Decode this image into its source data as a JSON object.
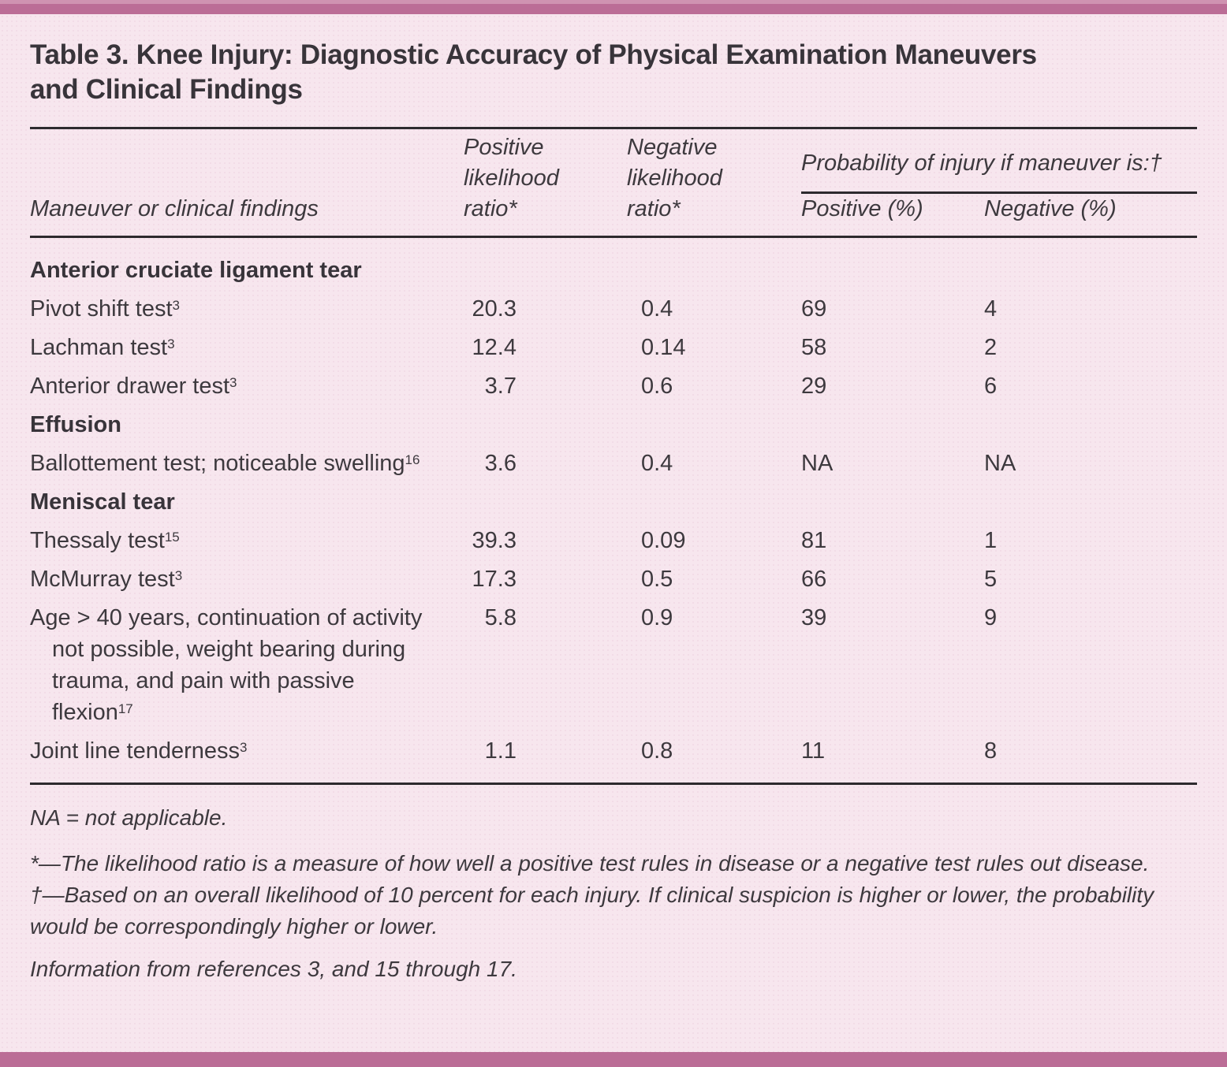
{
  "page": {
    "title_line1": "Table 3. Knee Injury: Diagnostic Accuracy of Physical Examination Maneuvers",
    "title_line2": "and Clinical Findings"
  },
  "colors": {
    "background": "#f7e6ee",
    "accent_bar": "#bb6d96",
    "accent_bar_light": "#cf93b1",
    "text": "#3d393e",
    "rule": "#2d2a2e"
  },
  "table": {
    "headers": {
      "maneuver": "Maneuver or clinical findings",
      "positive_lr": "Positive likelihood ratio*",
      "negative_lr": "Negative likelihood ratio*",
      "probability_group": "Probability of injury if maneuver is:†",
      "positive_pct": "Positive (%)",
      "negative_pct": "Negative (%)"
    },
    "rows": [
      {
        "type": "section",
        "label": "Anterior cruciate ligament tear"
      },
      {
        "type": "data",
        "label": "Pivot shift test",
        "sup": "3",
        "values": [
          "20.3",
          "0.4",
          "69",
          "4"
        ]
      },
      {
        "type": "data",
        "label": "Lachman test",
        "sup": "3",
        "values": [
          "12.4",
          "0.14",
          "58",
          "2"
        ]
      },
      {
        "type": "data",
        "label": "Anterior drawer test",
        "sup": "3",
        "values": [
          "3.7",
          "0.6",
          "29",
          "6"
        ]
      },
      {
        "type": "section",
        "label": "Effusion"
      },
      {
        "type": "data",
        "label": "Ballottement test; noticeable swelling",
        "sup": "16",
        "values": [
          "3.6",
          "0.4",
          "NA",
          "NA"
        ]
      },
      {
        "type": "section",
        "label": "Meniscal tear"
      },
      {
        "type": "data",
        "label": "Thessaly test",
        "sup": "15",
        "values": [
          "39.3",
          "0.09",
          "81",
          "1"
        ]
      },
      {
        "type": "data",
        "label": "McMurray test",
        "sup": "3",
        "values": [
          "17.3",
          "0.5",
          "66",
          "5"
        ]
      },
      {
        "type": "data",
        "label": "Age > 40 years, continuation of activity not possible, weight bearing during trauma, and pain with passive flexion",
        "sup": "17",
        "values": [
          "5.8",
          "0.9",
          "39",
          "9"
        ]
      },
      {
        "type": "data",
        "label": "Joint line tenderness",
        "sup": "3",
        "values": [
          "1.1",
          "0.8",
          "11",
          "8"
        ]
      }
    ]
  },
  "footnotes": {
    "na": "NA = not applicable.",
    "star": "*—The likelihood ratio is a measure of how well a positive test rules in disease or a negative test rules out disease.",
    "dagger": "†—Based on an overall likelihood of 10 percent for each injury. If clinical suspicion is higher or lower, the probability would be correspondingly higher or lower.",
    "info": "Information from references 3, and 15 through 17."
  }
}
